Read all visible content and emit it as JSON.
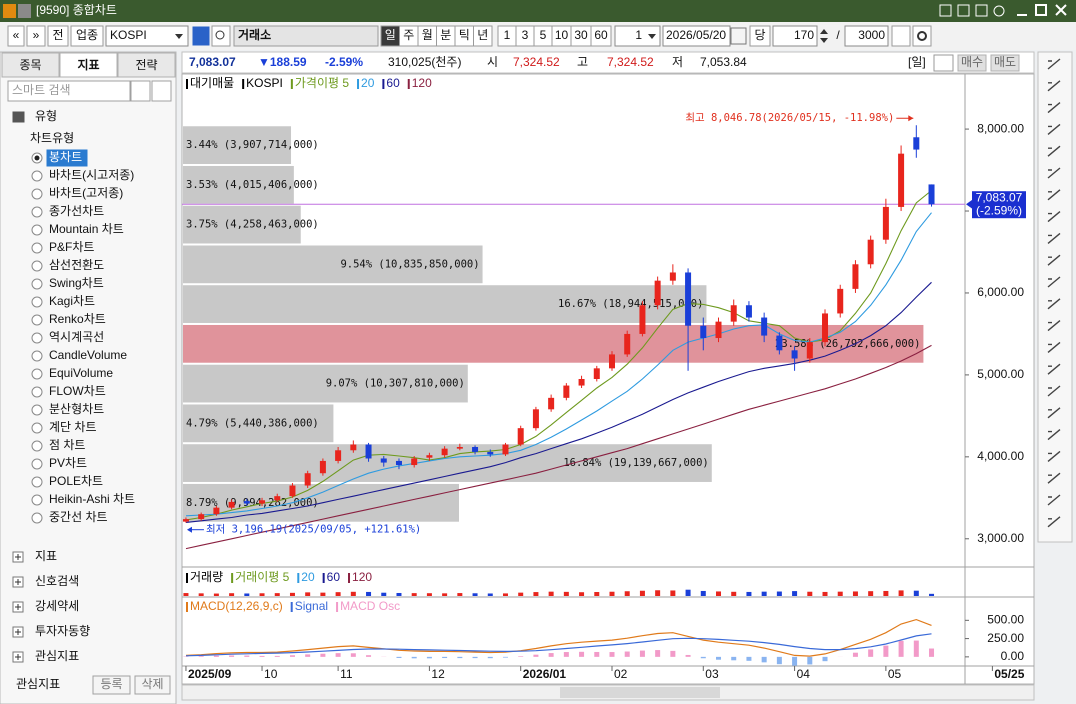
{
  "window": {
    "title": "[9590] 종합차트"
  },
  "toolbar": {
    "buttons_left": [
      "«",
      "»",
      "전",
      "업종"
    ],
    "symbol": "KOSPI",
    "market": "거래소",
    "periods": [
      "일",
      "주",
      "월",
      "분",
      "틱",
      "년"
    ],
    "selected_period": 0,
    "intervals": [
      "1",
      "3",
      "5",
      "10",
      "30",
      "60"
    ],
    "unit": "1",
    "date": "2026/05/20",
    "today": "당",
    "count": "170",
    "separator": "/",
    "max_count": "3000"
  },
  "left_panel": {
    "tabs": [
      "종목",
      "지표",
      "전략"
    ],
    "selected_tab": 1,
    "search": "스마트 검색",
    "type_header": "유형",
    "chart_type_header": "차트유형",
    "chart_types": [
      "봉차트",
      "바차트(시고저종)",
      "바차트(고저종)",
      "종가선차트",
      "Mountain 차트",
      "P&F차트",
      "삼선전환도",
      "Swing차트",
      "Kagi차트",
      "Renko차트",
      "역시계곡선",
      "CandleVolume",
      "EquiVolume",
      "FLOW차트",
      "분산형차트",
      "계단 차트",
      "점 차트",
      "PV차트",
      "POLE차트",
      "Heikin-Ashi 차트",
      "중간선 차트"
    ],
    "selected_index": 0,
    "sections": [
      "지표",
      "신호검색",
      "강세약세",
      "투자자동향",
      "관심지표"
    ],
    "footer": {
      "label": "관심지표",
      "buttons": [
        "등록",
        "삭제"
      ]
    }
  },
  "quote": {
    "price": "7,083.07",
    "change": "▼188.59",
    "change_rate": "-2.59%",
    "volume": "310,025(천주)",
    "open_label": "시",
    "open": "7,324.52",
    "high_label": "고",
    "high": "7,324.52",
    "low_label": "저",
    "low": "7,053.84",
    "period": "[일]",
    "buy": "매수",
    "sell": "매도"
  },
  "chart_data": [
    {
      "type": "candlestick",
      "candles": {
        "name": "KOSPI",
        "up_color": "#e8251d",
        "down_color": "#1a3fd8",
        "open": [
          3210,
          3240,
          3300,
          3380,
          3460,
          3430,
          3470,
          3520,
          3650,
          3800,
          3950,
          4080,
          4150,
          3980,
          3950,
          3900,
          3990,
          4020,
          4100,
          4120,
          4060,
          4030,
          4150,
          4350,
          4580,
          4720,
          4870,
          4950,
          5080,
          5250,
          5500,
          5850,
          6150,
          6250,
          5600,
          5450,
          5650,
          5850,
          5700,
          5480,
          5300,
          5200,
          5400,
          5750,
          6050,
          6350,
          6650,
          7050,
          7900,
          7324.52
        ],
        "high": [
          3260,
          3320,
          3400,
          3480,
          3490,
          3500,
          3550,
          3680,
          3830,
          3980,
          4120,
          4200,
          4170,
          4010,
          3980,
          4010,
          4050,
          4130,
          4160,
          4140,
          4090,
          4170,
          4380,
          4610,
          4760,
          4900,
          4990,
          5110,
          5290,
          5540,
          5900,
          6200,
          6350,
          6300,
          5700,
          5700,
          5920,
          5900,
          5760,
          5520,
          5350,
          5450,
          5800,
          6100,
          6400,
          6700,
          7150,
          7800,
          8046.78,
          7324.52
        ],
        "low": [
          3196.19,
          3220,
          3280,
          3360,
          3400,
          3400,
          3450,
          3500,
          3620,
          3770,
          3920,
          4050,
          3940,
          3880,
          3850,
          3870,
          3950,
          3990,
          4080,
          4030,
          4000,
          4010,
          4130,
          4320,
          4550,
          4690,
          4840,
          4920,
          5050,
          5220,
          5470,
          5800,
          6100,
          5050,
          5300,
          5400,
          5600,
          5650,
          5400,
          5250,
          5050,
          5150,
          5350,
          5700,
          6000,
          6300,
          6600,
          7000,
          7650,
          7053.84
        ],
        "close": [
          3240,
          3300,
          3380,
          3450,
          3430,
          3470,
          3520,
          3650,
          3800,
          3950,
          4080,
          4150,
          3980,
          3930,
          3900,
          3980,
          4020,
          4100,
          4120,
          4060,
          4030,
          4150,
          4350,
          4580,
          4720,
          4870,
          4950,
          5080,
          5250,
          5500,
          5850,
          6150,
          6250,
          5600,
          5450,
          5650,
          5850,
          5700,
          5480,
          5300,
          5200,
          5400,
          5750,
          6050,
          6350,
          6650,
          7050,
          7700,
          7750,
          7083.07
        ]
      },
      "series": [
        {
          "name": "가격이평 5",
          "color": "#6e9a1e",
          "values": [
            3230,
            3260,
            3300,
            3350,
            3390,
            3430,
            3460,
            3510,
            3590,
            3700,
            3830,
            3960,
            4020,
            4030,
            4010,
            3990,
            3960,
            3990,
            4040,
            4060,
            4070,
            4090,
            4150,
            4250,
            4390,
            4540,
            4690,
            4840,
            4970,
            5130,
            5330,
            5570,
            5800,
            5870,
            5860,
            5820,
            5760,
            5660,
            5630,
            5600,
            5450,
            5400,
            5430,
            5540,
            5750,
            6000,
            6360,
            6760,
            7100,
            7250
          ]
        },
        {
          "name": "20",
          "color": "#2f9be0",
          "values": [
            3280,
            3290,
            3300,
            3320,
            3340,
            3370,
            3400,
            3440,
            3500,
            3570,
            3650,
            3730,
            3800,
            3850,
            3890,
            3920,
            3950,
            3980,
            4000,
            4010,
            4020,
            4040,
            4080,
            4150,
            4240,
            4340,
            4450,
            4560,
            4680,
            4800,
            4950,
            5120,
            5300,
            5400,
            5450,
            5500,
            5560,
            5600,
            5610,
            5500,
            5420,
            5400,
            5450,
            5520,
            5650,
            5850,
            6100,
            6400,
            6750,
            6980
          ]
        },
        {
          "name": "60",
          "color": "#1a1a90",
          "values": [
            3200,
            3220,
            3240,
            3260,
            3290,
            3310,
            3340,
            3370,
            3400,
            3440,
            3480,
            3520,
            3560,
            3600,
            3640,
            3680,
            3720,
            3760,
            3800,
            3840,
            3880,
            3930,
            3990,
            4040,
            4100,
            4160,
            4220,
            4290,
            4360,
            4440,
            4520,
            4610,
            4700,
            4780,
            4850,
            4920,
            4980,
            5040,
            5080,
            5110,
            5140,
            5180,
            5230,
            5300,
            5380,
            5480,
            5600,
            5760,
            5950,
            6130
          ]
        },
        {
          "name": "120",
          "color": "#8a2040",
          "values": [
            2880,
            2920,
            2960,
            3000,
            3040,
            3080,
            3120,
            3160,
            3200,
            3240,
            3280,
            3320,
            3360,
            3400,
            3440,
            3480,
            3520,
            3560,
            3600,
            3640,
            3680,
            3720,
            3760,
            3800,
            3850,
            3900,
            3950,
            4000,
            4050,
            4100,
            4160,
            4220,
            4280,
            4340,
            4400,
            4460,
            4520,
            4580,
            4630,
            4680,
            4730,
            4780,
            4830,
            4890,
            4950,
            5020,
            5090,
            5170,
            5260,
            5360
          ]
        }
      ],
      "volume_profile": {
        "name": "대기매물",
        "color": "#c8c8c8",
        "highlight_color": "#e0939b",
        "bins": [
          3196.19,
          3681.25,
          4166.31,
          4651.37,
          5136.43,
          5621.49,
          6106.54,
          6591.6,
          7076.66,
          7561.72,
          8046.78
        ],
        "values": [
          8.79,
          16.84,
          4.79,
          9.07,
          23.58,
          16.67,
          9.54,
          3.75,
          3.53,
          3.44
        ],
        "value_labels": [
          "8.79% (9,994,282,000)",
          "16.84% (19,139,667,000)",
          "4.79% (5,440,386,000)",
          "9.07% (10,307,810,000)",
          "23.58% (26,792,666,000)",
          "16.67% (18,944,515,000)",
          "9.54% (10,835,850,000)",
          "3.75% (4,258,463,000)",
          "3.53% (4,015,406,000)",
          "3.44% (3,907,714,000)"
        ]
      },
      "annotations": {
        "high": {
          "value": 8046.78,
          "label": "최고 8,046.78(2026/05/15, -11.98%)",
          "color": "#e0301e"
        },
        "low": {
          "value": 3196.19,
          "label": "최저 3,196.19(2025/09/05, +121.61%)",
          "color": "#1a3fd8"
        },
        "last": {
          "value": 7083.07,
          "label": "7,083.07",
          "change_label": "(-2.59%)",
          "color": "#c070e0",
          "box_color": "#1a2fd0"
        }
      },
      "xlim": [
        -0.26,
        51.2
      ],
      "xticks": [
        {
          "value": 0,
          "label": "2025/09"
        },
        {
          "value": 5,
          "label": "10"
        },
        {
          "value": 10,
          "label": "11"
        },
        {
          "value": 16,
          "label": "12"
        },
        {
          "value": 22,
          "label": "2026/01"
        },
        {
          "value": 28,
          "label": "02"
        },
        {
          "value": 34,
          "label": "03"
        },
        {
          "value": 40,
          "label": "04"
        },
        {
          "value": 46,
          "label": "05"
        },
        {
          "value": 53,
          "label": "05/25"
        }
      ],
      "ylim": [
        2680,
        8660
      ],
      "yticks": [
        {
          "value": 3000,
          "label": "3,000.00"
        },
        {
          "value": 4000,
          "label": "4,000.00"
        },
        {
          "value": 5000,
          "label": "5,000.00"
        },
        {
          "value": 6000,
          "label": "6,000.00"
        },
        {
          "value": 7000,
          "label": "7,000.00"
        },
        {
          "value": 8000,
          "label": "8,000.00"
        }
      ]
    },
    {
      "type": "bar",
      "legend": [
        "거래량",
        "거래이평 5",
        "20",
        "60",
        "120"
      ],
      "legend_colors": [
        "#000000",
        "#6e9a1e",
        "#2f9be0",
        "#1a1a90",
        "#8a2040"
      ],
      "values": [
        420000,
        380000,
        350000,
        400000,
        360000,
        390000,
        410000,
        450000,
        520000,
        480000,
        550000,
        600000,
        580000,
        470000,
        430000,
        410000,
        400000,
        380000,
        420000,
        390000,
        360000,
        370000,
        480000,
        560000,
        620000,
        590000,
        540000,
        570000,
        610000,
        680000,
        750000,
        820000,
        790000,
        900000,
        720000,
        650000,
        600000,
        580000,
        620000,
        640000,
        700000,
        610000,
        580000,
        620000,
        650000,
        690000,
        720000,
        800000,
        760000,
        310025
      ],
      "ylim": [
        0,
        4000000
      ]
    },
    {
      "type": "line",
      "series": [
        {
          "name": "MACD(12,26,9,c)",
          "color": "#e07a1a",
          "values": [
            20,
            30,
            45,
            55,
            60,
            60,
            65,
            80,
            100,
            120,
            140,
            150,
            130,
            110,
            90,
            80,
            75,
            75,
            70,
            65,
            60,
            65,
            85,
            115,
            150,
            180,
            200,
            215,
            230,
            255,
            290,
            320,
            330,
            280,
            230,
            200,
            180,
            160,
            120,
            70,
            20,
            10,
            40,
            100,
            170,
            240,
            330,
            450,
            510,
            430
          ]
        },
        {
          "name": "Signal",
          "color": "#3a6ad8",
          "values": [
            15,
            20,
            28,
            36,
            42,
            47,
            52,
            58,
            66,
            77,
            89,
            101,
            107,
            108,
            105,
            100,
            95,
            91,
            87,
            82,
            78,
            75,
            77,
            85,
            98,
            114,
            131,
            148,
            164,
            182,
            204,
            227,
            248,
            254,
            249,
            239,
            227,
            214,
            195,
            170,
            140,
            114,
            99,
            99,
            113,
            138,
            176,
            231,
            287,
            316
          ]
        },
        {
          "name": "MACD Osc",
          "color": "#f29ac8",
          "down_color": "#8ab4f0",
          "kind": "bar",
          "values": [
            5,
            10,
            17,
            19,
            18,
            13,
            13,
            22,
            34,
            43,
            51,
            49,
            23,
            2,
            -15,
            -20,
            -20,
            -16,
            -17,
            -17,
            -18,
            -10,
            8,
            30,
            52,
            66,
            69,
            67,
            66,
            73,
            86,
            93,
            82,
            26,
            -19,
            -39,
            -47,
            -54,
            -75,
            -100,
            -120,
            -104,
            -59,
            1,
            57,
            102,
            154,
            219,
            223,
            114
          ]
        }
      ],
      "ylim": [
        -125,
        778
      ],
      "yticks": [
        {
          "value": 0,
          "label": "0.00"
        },
        {
          "value": 250,
          "label": "250.00"
        },
        {
          "value": 500,
          "label": "500.00"
        }
      ]
    }
  ]
}
